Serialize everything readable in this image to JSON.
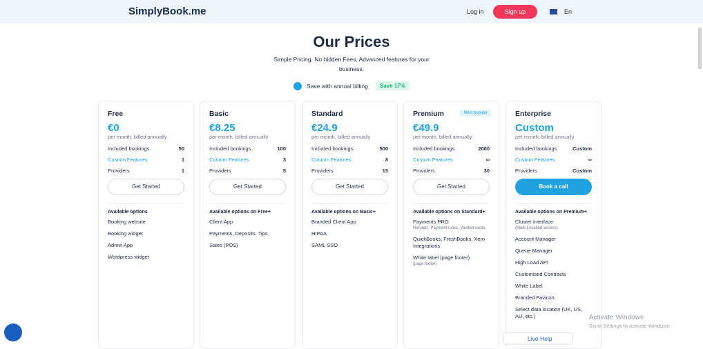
{
  "header": {
    "logo": "SimplyBook.me",
    "login": "Log in",
    "signup": "Sign up",
    "language": "En"
  },
  "hero": {
    "title": "Our Prices",
    "subtitle": "Simple Pricing. No hidden Fees. Advanced features for your business.",
    "toggle_label": "Save with annual billing",
    "save_badge": "Save 17%"
  },
  "plans": [
    {
      "name": "Free",
      "price": "€0",
      "period": "per month, billed annually",
      "rows": [
        [
          "Included bookings",
          50
        ],
        [
          "Custom Features",
          1
        ],
        [
          "Providers",
          1
        ]
      ],
      "button": "Get Started",
      "options_title": "Available options",
      "options": [
        {
          "text": "Booking website"
        },
        {
          "text": "Booking widget"
        },
        {
          "text": "Admin App"
        },
        {
          "text": "Wordpress widget"
        }
      ]
    },
    {
      "name": "Basic",
      "price": "€8.25",
      "period": "per month, billed annually",
      "rows": [
        [
          "Included bookings",
          100
        ],
        [
          "Custom Features",
          3
        ],
        [
          "Providers",
          5
        ]
      ],
      "button": "Get Started",
      "options_title": "Available options on Free+",
      "options": [
        {
          "text": "Client App"
        },
        {
          "text": "Payments, Deposits, Tips"
        },
        {
          "text": "Sales (POS)"
        }
      ]
    },
    {
      "name": "Standard",
      "price": "€24.9",
      "period": "per month, billed annually",
      "rows": [
        [
          "Included bookings",
          500
        ],
        [
          "Custom Features",
          8
        ],
        [
          "Providers",
          15
        ]
      ],
      "button": "Get Started",
      "options_title": "Available options on Basic+",
      "options": [
        {
          "text": "Branded Client App"
        },
        {
          "text": "HIPAA"
        },
        {
          "text": "SAML SSO"
        }
      ]
    },
    {
      "name": "Premium",
      "badge": "Most popular",
      "price": "€49.9",
      "period": "per month, billed annually",
      "rows": [
        [
          "Included bookings",
          2000
        ],
        [
          "Custom Features",
          "∞"
        ],
        [
          "Providers",
          30
        ]
      ],
      "button": "Get Started",
      "options_title": "Available options on Standard+",
      "options": [
        {
          "text": "Payments PRO",
          "note": "Refunds, Payment Links, Vaulted cards"
        },
        {
          "text": "QuickBooks, FreshBooks, Xero Integrations"
        },
        {
          "text": "White label (page footer)",
          "note": "(page footer)"
        }
      ]
    },
    {
      "name": "Enterprise",
      "price": "Custom",
      "period": "per month, billed annually",
      "rows": [
        [
          "Included bookings",
          "Custom"
        ],
        [
          "Custom Features",
          "∞"
        ],
        [
          "Providers",
          "Custom"
        ]
      ],
      "button": "Book a call",
      "options_title": "Available options on Premium+",
      "options": [
        {
          "text": "Cluster Interface",
          "note": "(Multi-Location access)"
        },
        {
          "text": "Account Manager"
        },
        {
          "text": "Queue Manager"
        },
        {
          "text": "High Load API"
        },
        {
          "text": "Customised Contracts"
        },
        {
          "text": "White Label"
        },
        {
          "text": "Branded Favicon"
        },
        {
          "text": "Select data location (UK, US, AU, etc.)"
        }
      ]
    }
  ],
  "footer": {
    "live_help": "Live Help",
    "watermark_title": "Activate Windows",
    "watermark_text": "Go to Settings to activate Windows."
  }
}
